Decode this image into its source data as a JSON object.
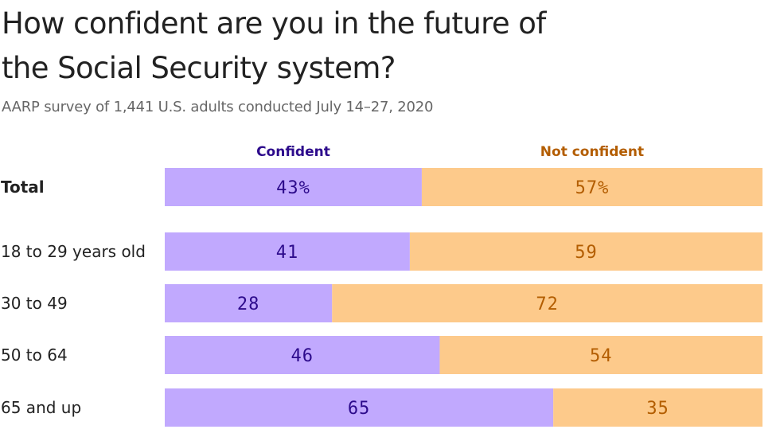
{
  "title": "How confident are you in the future of the Social Security system?",
  "subtitle": "AARP survey of 1,441 U.S. adults conducted July 14–27, 2020",
  "colors": {
    "confident_fill": "#c1a9fe",
    "confident_text": "#2d0b8c",
    "not_confident_fill": "#fdca8b",
    "not_confident_text": "#b35d00",
    "label_text": "#222222"
  },
  "chart_data": {
    "type": "bar",
    "orientation": "horizontal",
    "stacked": true,
    "percent_scale": true,
    "title": "How confident are you in the future of the Social Security system?",
    "subtitle": "AARP survey of 1,441 U.S. adults conducted July 14–27, 2020",
    "legend_placement": "top",
    "categories": [
      "Total",
      "18 to 29 years old",
      "30 to 49",
      "50 to 64",
      "65 and up"
    ],
    "series": [
      {
        "name": "Confident",
        "values": [
          43,
          41,
          28,
          46,
          65
        ],
        "labels": [
          "43%",
          "41",
          "28",
          "46",
          "65"
        ]
      },
      {
        "name": "Not confident",
        "values": [
          57,
          59,
          72,
          54,
          35
        ],
        "labels": [
          "57%",
          "59",
          "72",
          "54",
          "35"
        ]
      }
    ],
    "xlim": [
      0,
      100
    ],
    "grid": false
  }
}
